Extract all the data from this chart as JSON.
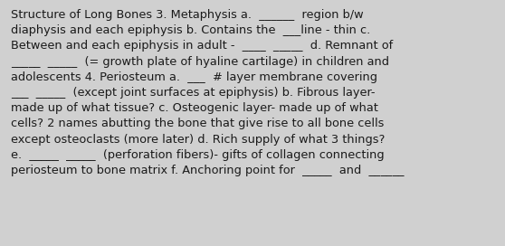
{
  "background_color": "#d0d0d0",
  "text_color": "#1a1a1a",
  "font_size": 9.3,
  "font_family": "DejaVu Sans",
  "line1": "Structure of Long Bones 3. Metaphysis a.  ______  region b/w",
  "line2": "diaphysis and each epiphysis b. Contains the  ___line - thin c.",
  "line3": "Between and each epiphysis in adult -  ____  _____  d. Remnant of",
  "line4": "_____  _____  (= growth plate of hyaline cartilage) in children and",
  "line5": "adolescents 4. Periosteum a.  ___  # layer membrane covering",
  "line6": "___  _____  (except joint surfaces at epiphysis) b. Fibrous layer-",
  "line7": "made up of what tissue? c. Osteogenic layer- made up of what",
  "line8": "cells? 2 names abutting the bone that give rise to all bone cells",
  "line9": "except osteoclasts (more later) d. Rich supply of what 3 things?",
  "line10": "e.  _____  _____  (perforation fibers)- gifts of collagen connecting",
  "line11": "periosteum to bone matrix f. Anchoring point for  _____  and  ______"
}
